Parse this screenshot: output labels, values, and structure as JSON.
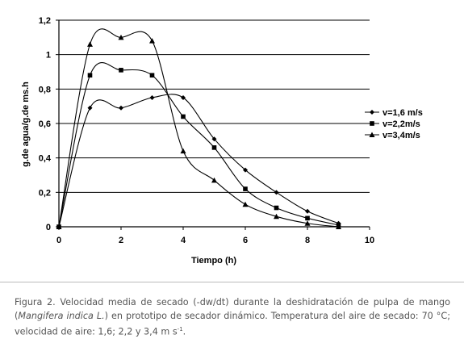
{
  "chart_data": {
    "type": "line",
    "xlabel": "Tiempo (h)",
    "ylabel": "g.de agua/g.de ms.h",
    "xlim": [
      0,
      10
    ],
    "ylim": [
      0,
      1.2
    ],
    "x_ticks": [
      "0",
      "2",
      "4",
      "6",
      "8",
      "10"
    ],
    "y_ticks": [
      "0",
      "0,2",
      "0,4",
      "0,6",
      "0,8",
      "1",
      "1,2"
    ],
    "grid": "horizontal",
    "legend_position": "right",
    "series": [
      {
        "name": "v=1,6 m/s",
        "marker": "diamond",
        "x": [
          0,
          1,
          2,
          3,
          4,
          5,
          6,
          7,
          8,
          9
        ],
        "values": [
          0,
          0.69,
          0.69,
          0.75,
          0.75,
          0.51,
          0.33,
          0.2,
          0.09,
          0.02
        ]
      },
      {
        "name": "v=2,2m/s",
        "marker": "square",
        "x": [
          0,
          1,
          2,
          3,
          4,
          5,
          6,
          7,
          8,
          9
        ],
        "values": [
          0,
          0.88,
          0.91,
          0.88,
          0.64,
          0.46,
          0.22,
          0.11,
          0.05,
          0.01
        ]
      },
      {
        "name": "v=3,4m/s",
        "marker": "triangle",
        "x": [
          0,
          1,
          2,
          3,
          4,
          5,
          6,
          7,
          8,
          9
        ],
        "values": [
          0,
          1.06,
          1.1,
          1.08,
          0.44,
          0.27,
          0.13,
          0.06,
          0.02,
          0.0
        ]
      }
    ]
  },
  "caption": {
    "prefix": "Figura 2. Velocidad media de secado (-dw/dt) durante la deshidratación de pulpa de mango (",
    "species": "Mangifera indica L.",
    "suffix": ") en prototipo de secador dinámico. Temperatura del aire de secado: 70 °C; velocidad de aire: 1,6; 2,2 y 3,4 m s",
    "exponent": "-1",
    "end": "."
  }
}
